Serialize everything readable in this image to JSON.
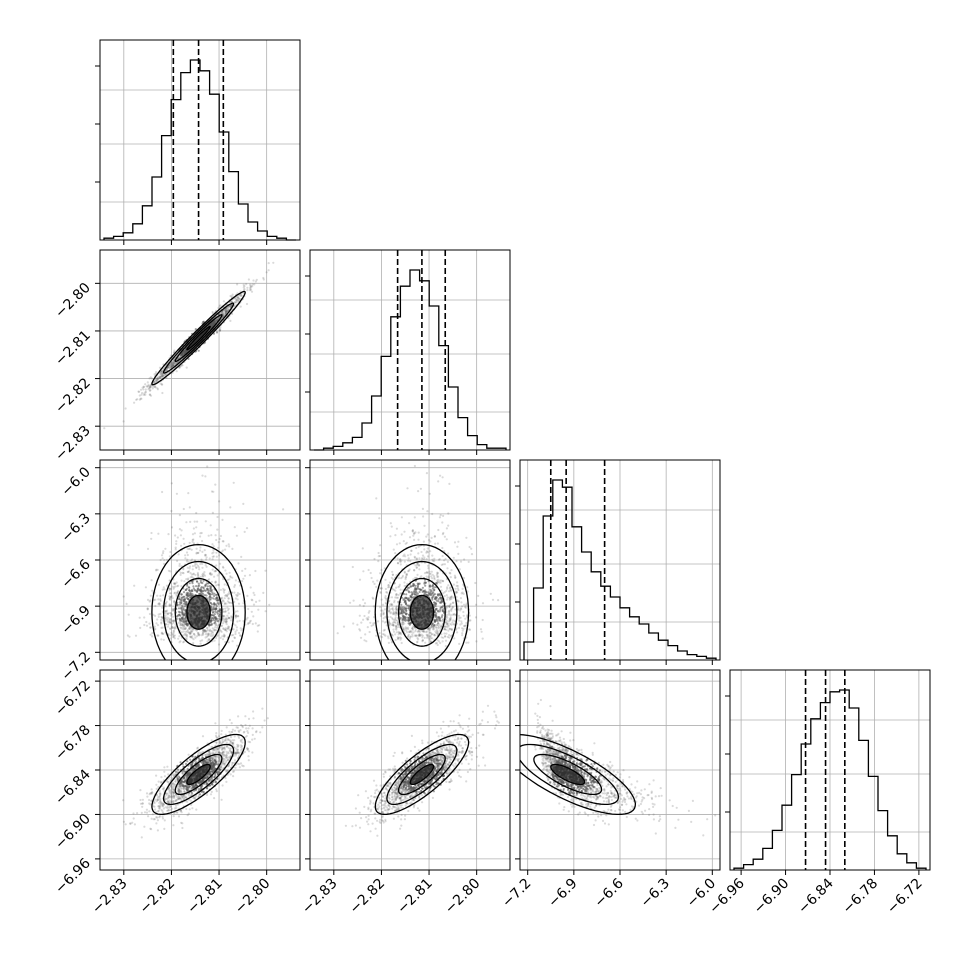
{
  "chart_data": {
    "type": "corner",
    "title": "",
    "grid": true,
    "colors": {
      "line": "#000000",
      "grid": "#b0b0b0",
      "points": "#555555"
    },
    "parameters": [
      {
        "range": [
          -2.835,
          -2.793
        ],
        "ticks": [
          -2.83,
          -2.82,
          -2.81,
          -2.8
        ],
        "tick_labels": [
          "−2.83",
          "−2.82",
          "−2.81",
          "−2.80"
        ],
        "quantiles": [
          -2.8196,
          -2.8143,
          -2.8091
        ],
        "mean": -2.8143,
        "sd": 0.0049,
        "skew": 0
      },
      {
        "range": [
          -2.835,
          -2.793
        ],
        "ticks": [
          -2.83,
          -2.82,
          -2.81,
          -2.8
        ],
        "tick_labels": [
          "−2.83",
          "−2.82",
          "−2.81",
          "−2.80"
        ],
        "quantiles": [
          -2.8166,
          -2.8115,
          -2.8066
        ],
        "mean": -2.8115,
        "sd": 0.0049,
        "skew": 0
      },
      {
        "range": [
          -7.25,
          -5.95
        ],
        "ticks": [
          -7.2,
          -6.9,
          -6.6,
          -6.3,
          -6.0
        ],
        "tick_labels": [
          "−7.2",
          "−6.9",
          "−6.6",
          "−6.3",
          "−6.0"
        ],
        "quantiles": [
          -7.05,
          -6.95,
          -6.7
        ],
        "mode": -7.0,
        "sd": 0.14,
        "skew": 1
      },
      {
        "range": [
          -6.975,
          -6.705
        ],
        "ticks": [
          -6.96,
          -6.9,
          -6.84,
          -6.78,
          -6.72
        ],
        "tick_labels": [
          "−6.96",
          "−6.90",
          "−6.84",
          "−6.78",
          "−6.72"
        ],
        "quantiles": [
          -6.873,
          -6.846,
          -6.82
        ],
        "mean": -6.846,
        "sd": 0.027,
        "skew": 0
      }
    ],
    "histograms": [
      {
        "param": 0,
        "counts": [
          1,
          2,
          4,
          9,
          19,
          35,
          58,
          78,
          93,
          100,
          94,
          81,
          60,
          38,
          20,
          10,
          5,
          2,
          1,
          0
        ]
      },
      {
        "param": 1,
        "counts": [
          0,
          1,
          2,
          4,
          7,
          15,
          30,
          52,
          74,
          91,
          100,
          94,
          80,
          58,
          35,
          18,
          8,
          3,
          1,
          1
        ]
      },
      {
        "param": 2,
        "counts": [
          10,
          40,
          80,
          100,
          96,
          74,
          60,
          49,
          41,
          35,
          29,
          24,
          20,
          15,
          11,
          8,
          5,
          3,
          2,
          1
        ]
      },
      {
        "param": 3,
        "counts": [
          1,
          3,
          6,
          12,
          22,
          36,
          53,
          70,
          84,
          93,
          99,
          100,
          90,
          72,
          52,
          33,
          19,
          9,
          4,
          1
        ]
      }
    ],
    "scatter_panels": [
      {
        "row": 1,
        "col": 0,
        "correlation": 0.98
      },
      {
        "row": 2,
        "col": 0,
        "correlation": 0.0
      },
      {
        "row": 2,
        "col": 1,
        "correlation": 0.0
      },
      {
        "row": 3,
        "col": 0,
        "correlation": 0.8
      },
      {
        "row": 3,
        "col": 1,
        "correlation": 0.8
      },
      {
        "row": 3,
        "col": 2,
        "correlation": -0.75
      }
    ]
  }
}
